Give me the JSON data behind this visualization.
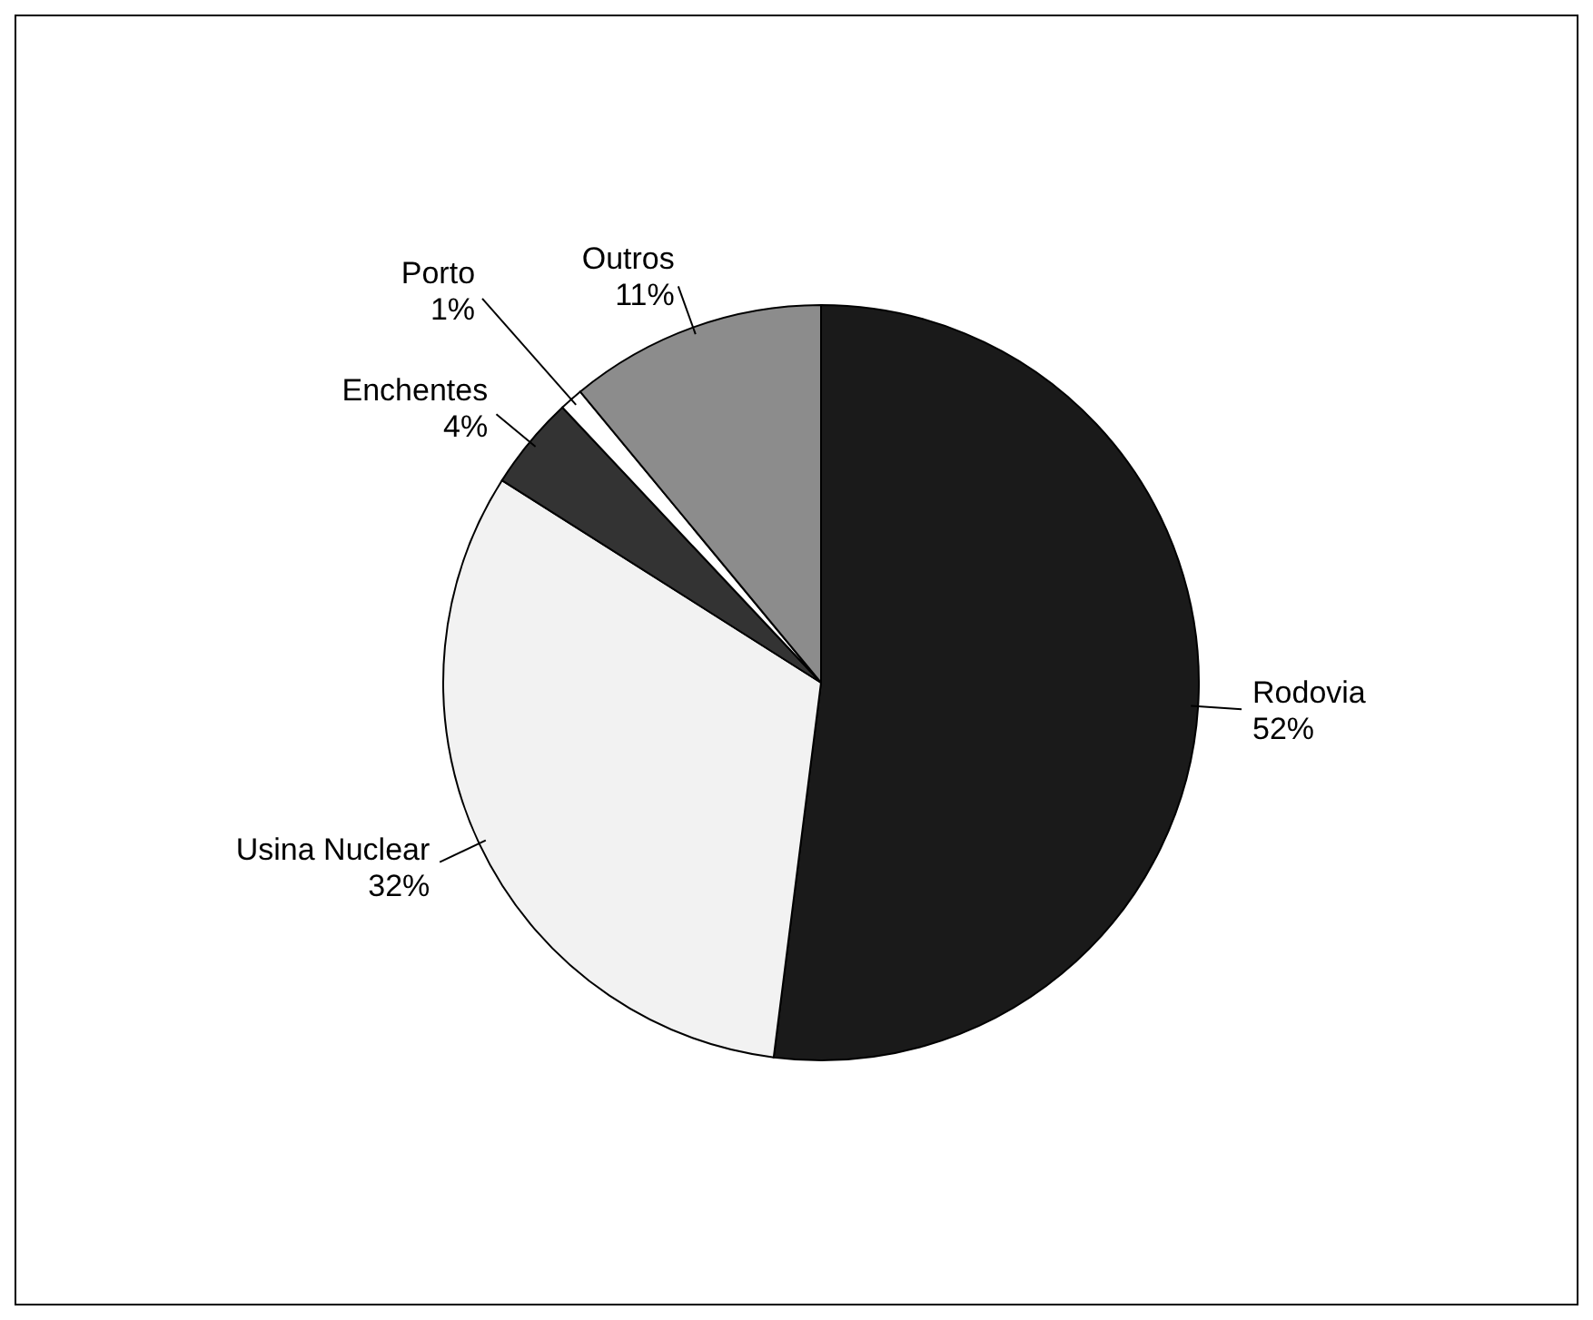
{
  "chart_data": {
    "type": "pie",
    "categories": [
      "Rodovia",
      "Usina Nuclear",
      "Enchentes",
      "Porto",
      "Outros"
    ],
    "values": [
      52,
      32,
      4,
      1,
      11
    ],
    "value_labels": [
      "52%",
      "32%",
      "4%",
      "1%",
      "11%"
    ],
    "colors": [
      "#1a1a1a",
      "#f2f2f2",
      "#333333",
      "#ffffff",
      "#8c8c8c"
    ],
    "legend": false
  }
}
